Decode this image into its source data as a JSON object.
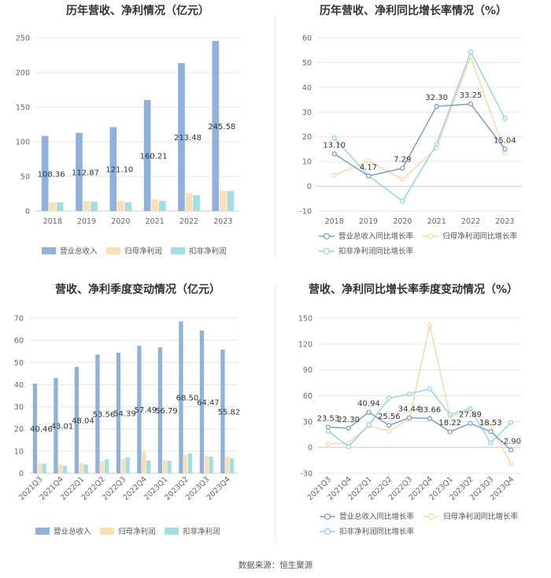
{
  "source_label": "数据来源：恒生聚源",
  "colors": {
    "revenue": "#8eb1dd",
    "net_profit": "#fde0b0",
    "deducted_profit": "#9fdfe6",
    "revenue_line": "#7b9fd6",
    "net_profit_line": "#fcd8a4",
    "deducted_profit_line": "#8fd9e1"
  },
  "chart_data": [
    {
      "id": "annual_amounts",
      "type": "bar",
      "title": "历年营收、净利情况（亿元）",
      "categories": [
        "2018",
        "2019",
        "2020",
        "2021",
        "2022",
        "2023"
      ],
      "series": [
        {
          "name": "营业总收入",
          "values": [
            108.36,
            112.87,
            121.1,
            160.21,
            213.48,
            245.58
          ],
          "labels": [
            "108.36",
            "112.87",
            "121.10",
            "160.21",
            "213.48",
            "245.58"
          ]
        },
        {
          "name": "归母净利润",
          "values": [
            12.8,
            14.3,
            14.7,
            17.1,
            25.8,
            29.2
          ]
        },
        {
          "name": "扣非净利润",
          "values": [
            12.6,
            13.4,
            12.8,
            14.8,
            22.9,
            29.0
          ]
        }
      ],
      "yticks": [
        "0",
        "50",
        "100",
        "150",
        "200",
        "250"
      ],
      "ylim": [
        0,
        250
      ]
    },
    {
      "id": "annual_growth",
      "type": "line",
      "title": "历年营收、净利同比增长率情况（%）",
      "categories": [
        "2018",
        "2019",
        "2020",
        "2021",
        "2022",
        "2023"
      ],
      "series": [
        {
          "name": "营业总收入同比增长率",
          "values": [
            13.1,
            4.17,
            7.29,
            32.3,
            33.25,
            15.04
          ],
          "labels": [
            "13.10",
            "4.17",
            "7.29",
            "32.30",
            "33.25",
            "15.04"
          ]
        },
        {
          "name": "归母净利润同比增长率",
          "values": [
            4.5,
            10.2,
            2.8,
            15.5,
            52.5,
            13.5
          ]
        },
        {
          "name": "扣非净利润同比增长率",
          "values": [
            19.5,
            4.3,
            -6.0,
            17.0,
            54.3,
            27.5
          ]
        }
      ],
      "yticks": [
        "-10",
        "0",
        "10",
        "20",
        "30",
        "40",
        "50",
        "60"
      ],
      "ylim": [
        -10,
        60
      ]
    },
    {
      "id": "quarterly_amounts",
      "type": "bar",
      "title": "营收、净利季度变动情况（亿元）",
      "categories": [
        "2021Q3",
        "2021Q4",
        "2022Q1",
        "2022Q2",
        "2022Q3",
        "2022Q4",
        "2023Q1",
        "2023Q2",
        "2023Q3",
        "2023Q4"
      ],
      "series": [
        {
          "name": "营业总收入",
          "values": [
            40.46,
            43.01,
            48.04,
            53.56,
            54.39,
            57.49,
            56.79,
            68.5,
            64.47,
            55.82
          ],
          "labels": [
            "40.46",
            "43.01",
            "48.04",
            "53.56",
            "54.39",
            "57.49",
            "56.79",
            "68.50",
            "64.47",
            "55.82"
          ]
        },
        {
          "name": "归母净利润",
          "values": [
            4.6,
            4.0,
            4.6,
            5.5,
            6.5,
            9.6,
            6.0,
            8.3,
            7.8,
            7.5
          ]
        },
        {
          "name": "扣非净利润",
          "values": [
            4.3,
            3.4,
            4.0,
            6.3,
            7.2,
            5.7,
            5.6,
            9.0,
            7.5,
            6.8
          ]
        }
      ],
      "yticks": [
        "0",
        "10",
        "20",
        "30",
        "40",
        "50",
        "60",
        "70"
      ],
      "ylim": [
        0,
        70
      ]
    },
    {
      "id": "quarterly_growth",
      "type": "line",
      "title": "营收、净利同比增长率季度变动情况（%）",
      "categories": [
        "2021Q3",
        "2021Q4",
        "2022Q1",
        "2022Q2",
        "2022Q3",
        "2022Q4",
        "2023Q1",
        "2023Q2",
        "2023Q3",
        "2023Q4"
      ],
      "series": [
        {
          "name": "营业总收入同比增长率",
          "values": [
            23.53,
            22.3,
            40.94,
            25.56,
            34.44,
            33.66,
            18.22,
            27.89,
            18.53,
            -2.9
          ],
          "labels": [
            "23.53",
            "22.30",
            "40.94",
            "25.56",
            "34.44",
            "33.66",
            "18.22",
            "27.89",
            "18.53",
            "-2.90"
          ]
        },
        {
          "name": "归母净利润同比增长率",
          "values": [
            4.0,
            5.0,
            25.0,
            19.0,
            33.0,
            142.0,
            36.0,
            42.0,
            25.0,
            -19.0
          ]
        },
        {
          "name": "扣非净利润同比增长率",
          "values": [
            19.0,
            1.0,
            26.0,
            57.0,
            62.0,
            68.0,
            38.0,
            45.0,
            5.0,
            29.0
          ]
        }
      ],
      "yticks": [
        "-30",
        "0",
        "30",
        "60",
        "90",
        "120",
        "150"
      ],
      "ylim": [
        -30,
        150
      ]
    }
  ]
}
